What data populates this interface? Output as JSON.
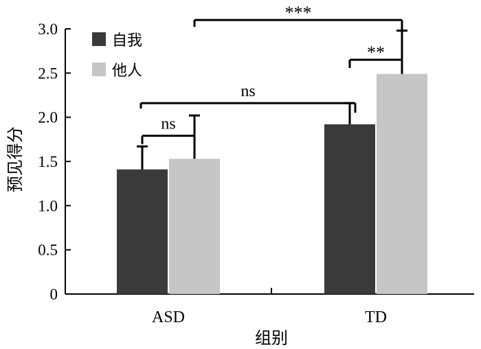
{
  "chart_data": {
    "type": "bar",
    "title": "",
    "xlabel": "组别",
    "ylabel": "预见得分",
    "ylim": [
      0,
      3.0
    ],
    "yticks": [
      "0",
      "0.5",
      "1.0",
      "1.5",
      "2.0",
      "2.5",
      "3.0"
    ],
    "categories": [
      "ASD",
      "TD"
    ],
    "series": [
      {
        "name": "自我",
        "values": [
          1.41,
          1.92
        ],
        "errors": [
          0.26,
          0.24
        ],
        "color": "#3a3a3a"
      },
      {
        "name": "他人",
        "values": [
          1.53,
          2.49
        ],
        "errors": [
          0.49,
          0.49
        ],
        "color": "#c6c6c6"
      }
    ],
    "legend_position": "top-left",
    "significance": [
      {
        "label": "ns",
        "between": "ASD 自我 vs ASD 他人",
        "level": 1.79
      },
      {
        "label": "**",
        "between": "TD 自我 vs TD 他人",
        "level": 2.65
      },
      {
        "label": "ns",
        "between": "ASD vs TD",
        "level": 2.16
      },
      {
        "label": "***",
        "between": "ASD 他人 vs TD 他人",
        "level": 3.1
      }
    ]
  }
}
